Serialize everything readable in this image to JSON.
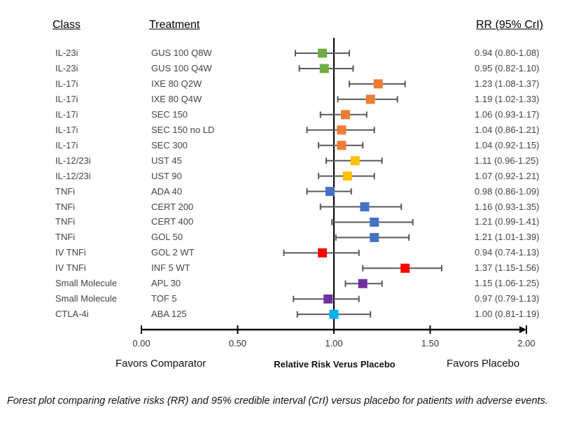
{
  "headers": {
    "class": "Class",
    "treatment": "Treatment",
    "rr": "RR (95% CrI)"
  },
  "chart_data": {
    "type": "forest",
    "xlabel": "Relative Risk Verus Placebo",
    "xlim": [
      0,
      2
    ],
    "reference_value": 1.0,
    "x_ticks": [
      "0.00",
      "0.50",
      "1.00",
      "1.50",
      "2.00"
    ],
    "x_tick_values": [
      0,
      0.5,
      1.0,
      1.5,
      2.0
    ],
    "left_annotation": "Favors Comparator",
    "right_annotation": "Favors Placebo",
    "colors": {
      "IL-23i": "#70ad47",
      "IL-17i": "#ed7d31",
      "IL-12/23i": "#ffc000",
      "TNFi": "#4472c4",
      "IV TNFi": "#ff0000",
      "Small Molecule": "#7030a0",
      "CTLA-4i": "#00b0f0",
      "whisker": "#595959",
      "axis": "#000000"
    },
    "rows": [
      {
        "class": "IL-23i",
        "treatment": "GUS 100 Q8W",
        "rr": 0.94,
        "lo": 0.8,
        "hi": 1.08,
        "label": "0.94 (0.80-1.08)"
      },
      {
        "class": "IL-23i",
        "treatment": "GUS 100 Q4W",
        "rr": 0.95,
        "lo": 0.82,
        "hi": 1.1,
        "label": "0.95 (0.82-1.10)"
      },
      {
        "class": "IL-17i",
        "treatment": "IXE 80 Q2W",
        "rr": 1.23,
        "lo": 1.08,
        "hi": 1.37,
        "label": "1.23 (1.08-1.37)"
      },
      {
        "class": "IL-17i",
        "treatment": "IXE 80 Q4W",
        "rr": 1.19,
        "lo": 1.02,
        "hi": 1.33,
        "label": "1.19 (1.02-1.33)"
      },
      {
        "class": "IL-17i",
        "treatment": "SEC 150",
        "rr": 1.06,
        "lo": 0.93,
        "hi": 1.17,
        "label": "1.06 (0.93-1.17)"
      },
      {
        "class": "IL-17i",
        "treatment": "SEC 150 no LD",
        "rr": 1.04,
        "lo": 0.86,
        "hi": 1.21,
        "label": "1.04 (0.86-1.21)"
      },
      {
        "class": "IL-17i",
        "treatment": "SEC 300",
        "rr": 1.04,
        "lo": 0.92,
        "hi": 1.15,
        "label": "1.04 (0.92-1.15)"
      },
      {
        "class": "IL-12/23i",
        "treatment": "UST 45",
        "rr": 1.11,
        "lo": 0.96,
        "hi": 1.25,
        "label": "1.11 (0.96-1.25)"
      },
      {
        "class": "IL-12/23i",
        "treatment": "UST 90",
        "rr": 1.07,
        "lo": 0.92,
        "hi": 1.21,
        "label": "1.07 (0.92-1.21)"
      },
      {
        "class": "TNFi",
        "treatment": "ADA 40",
        "rr": 0.98,
        "lo": 0.86,
        "hi": 1.09,
        "label": "0.98 (0.86-1.09)"
      },
      {
        "class": "TNFi",
        "treatment": "CERT 200",
        "rr": 1.16,
        "lo": 0.93,
        "hi": 1.35,
        "label": "1.16 (0.93-1.35)"
      },
      {
        "class": "TNFi",
        "treatment": "CERT 400",
        "rr": 1.21,
        "lo": 0.99,
        "hi": 1.41,
        "label": "1.21 (0.99-1.41)"
      },
      {
        "class": "TNFi",
        "treatment": "GOL 50",
        "rr": 1.21,
        "lo": 1.01,
        "hi": 1.39,
        "label": "1.21 (1.01-1.39)"
      },
      {
        "class": "IV TNFi",
        "treatment": "GOL 2 WT",
        "rr": 0.94,
        "lo": 0.74,
        "hi": 1.13,
        "label": "0.94 (0.74-1.13)"
      },
      {
        "class": "IV TNFi",
        "treatment": "INF 5 WT",
        "rr": 1.37,
        "lo": 1.15,
        "hi": 1.56,
        "label": "1.37 (1.15-1.56)"
      },
      {
        "class": "Small Molecule",
        "treatment": "APL 30",
        "rr": 1.15,
        "lo": 1.06,
        "hi": 1.25,
        "label": "1.15 (1.06-1.25)"
      },
      {
        "class": "Small Molecule",
        "treatment": "TOF 5",
        "rr": 0.97,
        "lo": 0.79,
        "hi": 1.13,
        "label": "0.97 (0.79-1.13)"
      },
      {
        "class": "CTLA-4i",
        "treatment": "ABA 125",
        "rr": 1.0,
        "lo": 0.81,
        "hi": 1.19,
        "label": "1.00 (0.81-1.19)"
      }
    ]
  },
  "caption": "Forest plot comparing relative risks (RR) and 95% credible interval (CrI) versus placebo for patients with adverse events."
}
